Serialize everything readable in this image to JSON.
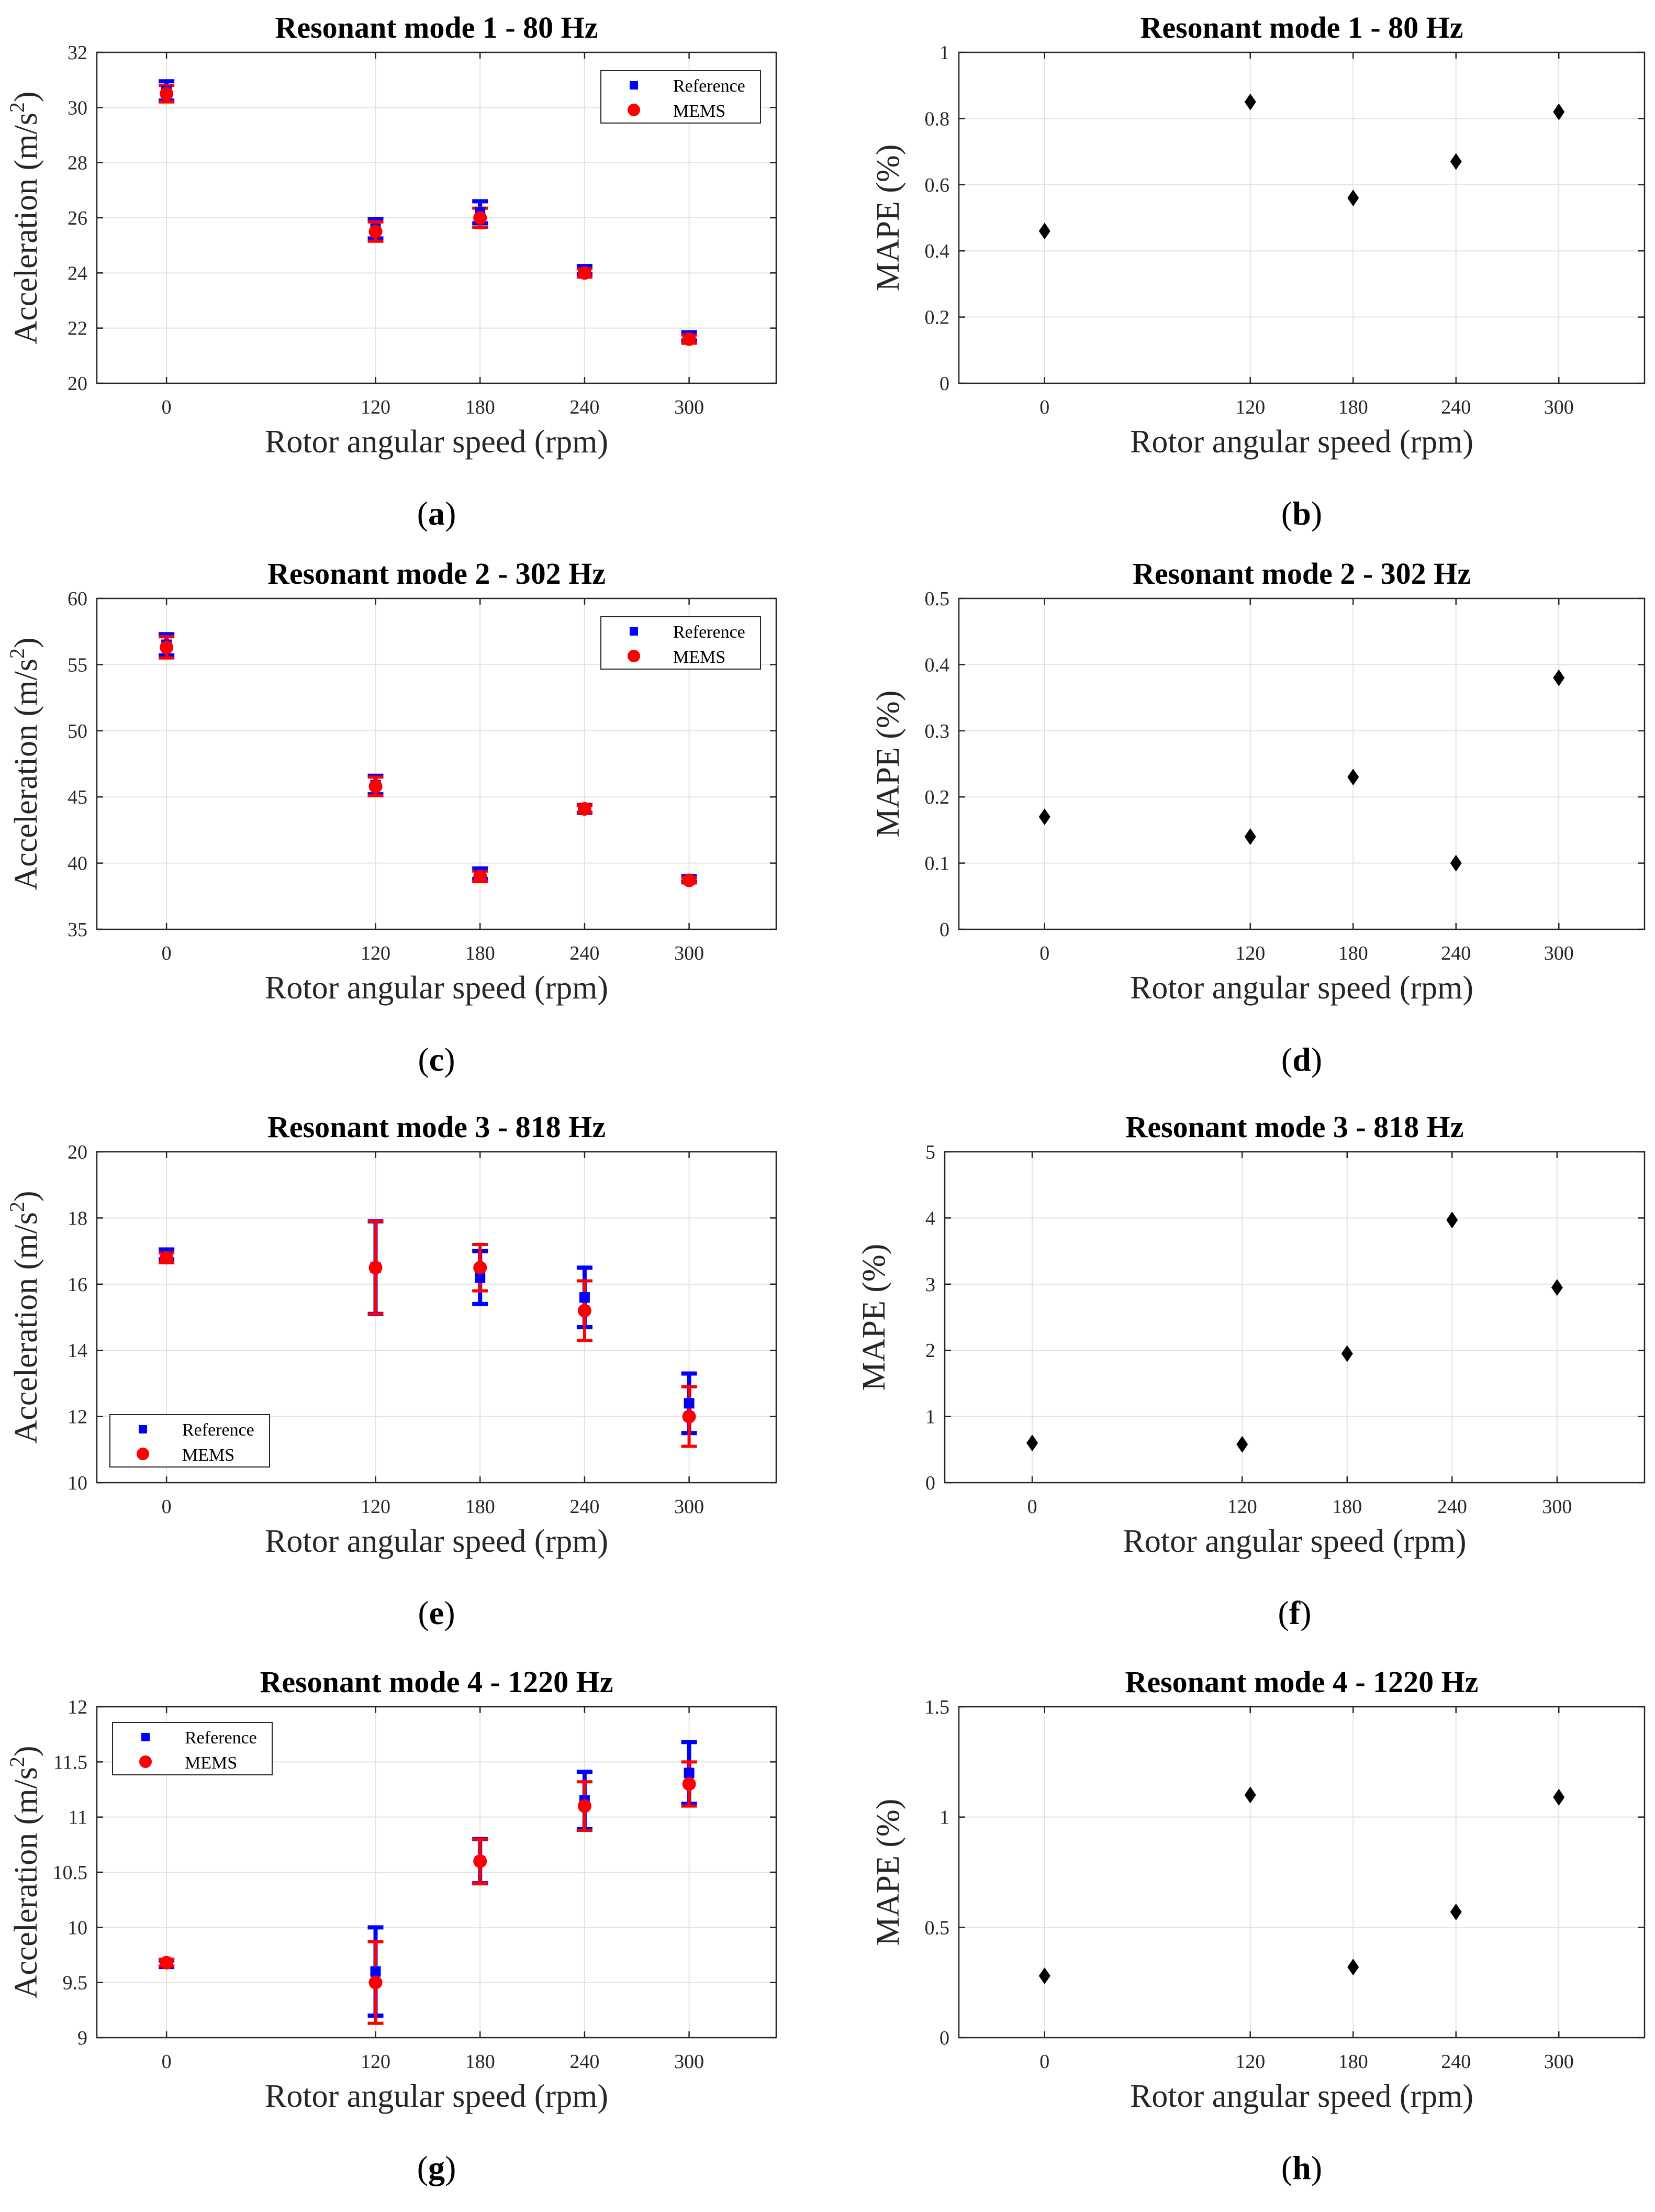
{
  "figure": {
    "x_axis_label": "Rotor angular speed (rpm)",
    "acc_axis_label_main": "Acceleration (m/s",
    "acc_axis_label_sup": "2",
    "acc_axis_label_end": ")",
    "mape_axis_label": "MAPE (%)",
    "legend_reference": "Reference",
    "legend_mems": "MEMS"
  },
  "colors": {
    "reference": "#0000ff",
    "mems": "#ff0000",
    "mape": "#000000",
    "grid": "#e3e3e3",
    "axis": "#262626"
  },
  "chart_data": [
    {
      "id": "a",
      "sublabel": "a",
      "type": "scatter",
      "title": "Resonant mode 1 - 80 Hz",
      "xlabel": "Rotor angular speed (rpm)",
      "ylabel": "Acceleration (m/s2)",
      "x": [
        0,
        120,
        180,
        240,
        300
      ],
      "xticks": [
        "0",
        "120",
        "180",
        "240",
        "300"
      ],
      "xlim": [
        -40,
        350
      ],
      "ylim": [
        20,
        32
      ],
      "yticks": [
        "20",
        "22",
        "24",
        "26",
        "28",
        "30",
        "32"
      ],
      "legend": "top-right",
      "series": [
        {
          "name": "Reference",
          "values": [
            30.6,
            25.6,
            26.2,
            24.1,
            21.7
          ],
          "err": [
            0.35,
            0.35,
            0.4,
            0.15,
            0.15
          ]
        },
        {
          "name": "MEMS",
          "values": [
            30.5,
            25.5,
            26.0,
            24.0,
            21.6
          ],
          "err": [
            0.3,
            0.35,
            0.35,
            0.15,
            0.15
          ]
        }
      ]
    },
    {
      "id": "b",
      "sublabel": "b",
      "type": "scatter",
      "title": "Resonant mode 1 - 80 Hz",
      "xlabel": "Rotor angular speed (rpm)",
      "ylabel": "MAPE (%)",
      "x": [
        0,
        120,
        180,
        240,
        300
      ],
      "xticks": [
        "0",
        "120",
        "180",
        "240",
        "300"
      ],
      "xlim": [
        -50,
        350
      ],
      "ylim": [
        0,
        1
      ],
      "yticks": [
        "0",
        "0.2",
        "0.4",
        "0.6",
        "0.8",
        "1"
      ],
      "series": [
        {
          "name": "MAPE",
          "values": [
            0.46,
            0.85,
            0.56,
            0.67,
            0.82
          ]
        }
      ]
    },
    {
      "id": "c",
      "sublabel": "c",
      "type": "scatter",
      "title": "Resonant mode 2 - 302 Hz",
      "xlabel": "Rotor angular speed (rpm)",
      "ylabel": "Acceleration (m/s2)",
      "x": [
        0,
        120,
        180,
        240,
        300
      ],
      "xticks": [
        "0",
        "120",
        "180",
        "240",
        "300"
      ],
      "xlim": [
        -40,
        350
      ],
      "ylim": [
        35,
        60
      ],
      "yticks": [
        "35",
        "40",
        "45",
        "50",
        "55",
        "60"
      ],
      "legend": "top-right",
      "series": [
        {
          "name": "Reference",
          "values": [
            56.5,
            45.9,
            39.2,
            44.1,
            38.8
          ],
          "err": [
            0.8,
            0.7,
            0.4,
            0.3,
            0.2
          ]
        },
        {
          "name": "MEMS",
          "values": [
            56.3,
            45.8,
            39.0,
            44.1,
            38.7
          ],
          "err": [
            0.8,
            0.7,
            0.4,
            0.3,
            0.2
          ]
        }
      ]
    },
    {
      "id": "d",
      "sublabel": "d",
      "type": "scatter",
      "title": "Resonant mode 2 - 302 Hz",
      "xlabel": "Rotor angular speed (rpm)",
      "ylabel": "MAPE (%)",
      "x": [
        0,
        120,
        180,
        240,
        300
      ],
      "xticks": [
        "0",
        "120",
        "180",
        "240",
        "300"
      ],
      "xlim": [
        -50,
        350
      ],
      "ylim": [
        0,
        0.5
      ],
      "yticks": [
        "0",
        "0.1",
        "0.2",
        "0.3",
        "0.4",
        "0.5"
      ],
      "series": [
        {
          "name": "MAPE",
          "values": [
            0.17,
            0.14,
            0.23,
            0.1,
            0.38
          ]
        }
      ]
    },
    {
      "id": "e",
      "sublabel": "e",
      "type": "scatter",
      "title": "Resonant mode 3 - 818 Hz",
      "xlabel": "Rotor angular speed (rpm)",
      "ylabel": "Acceleration (m/s2)",
      "x": [
        0,
        120,
        180,
        240,
        300
      ],
      "xticks": [
        "0",
        "120",
        "180",
        "240",
        "300"
      ],
      "xlim": [
        -40,
        350
      ],
      "ylim": [
        10,
        20
      ],
      "yticks": [
        "10",
        "12",
        "14",
        "16",
        "18",
        "20"
      ],
      "legend": "bottom-left",
      "series": [
        {
          "name": "Reference",
          "values": [
            16.9,
            16.5,
            16.2,
            15.6,
            12.4
          ],
          "err": [
            0.15,
            1.4,
            0.8,
            0.9,
            0.9
          ]
        },
        {
          "name": "MEMS",
          "values": [
            16.8,
            16.5,
            16.5,
            15.2,
            12.0
          ],
          "err": [
            0.15,
            1.4,
            0.7,
            0.9,
            0.9
          ]
        }
      ]
    },
    {
      "id": "f",
      "sublabel": "f",
      "type": "scatter",
      "title": "Resonant mode 3 - 818 Hz",
      "xlabel": "Rotor angular speed (rpm)",
      "ylabel": "MAPE (%)",
      "x": [
        0,
        120,
        180,
        240,
        300
      ],
      "xticks": [
        "0",
        "120",
        "180",
        "240",
        "300"
      ],
      "xlim": [
        -50,
        350
      ],
      "ylim": [
        0,
        5
      ],
      "yticks": [
        "0",
        "1",
        "2",
        "3",
        "4",
        "5"
      ],
      "series": [
        {
          "name": "MAPE",
          "values": [
            0.6,
            0.58,
            1.95,
            3.97,
            2.95
          ]
        }
      ]
    },
    {
      "id": "g",
      "sublabel": "g",
      "type": "scatter",
      "title": "Resonant mode 4 - 1220 Hz",
      "xlabel": "Rotor angular speed (rpm)",
      "ylabel": "Acceleration (m/s2)",
      "x": [
        0,
        120,
        180,
        240,
        300
      ],
      "xticks": [
        "0",
        "120",
        "180",
        "240",
        "300"
      ],
      "xlim": [
        -40,
        350
      ],
      "ylim": [
        9,
        12
      ],
      "yticks": [
        "9",
        "9.5",
        "10",
        "10.5",
        "11",
        "11.5",
        "12"
      ],
      "legend": "top-left",
      "series": [
        {
          "name": "Reference",
          "values": [
            9.67,
            9.6,
            10.6,
            11.15,
            11.4
          ],
          "err": [
            0.03,
            0.4,
            0.2,
            0.26,
            0.28
          ]
        },
        {
          "name": "MEMS",
          "values": [
            9.68,
            9.5,
            10.6,
            11.1,
            11.3
          ],
          "err": [
            0.03,
            0.37,
            0.2,
            0.22,
            0.2
          ]
        }
      ]
    },
    {
      "id": "h",
      "sublabel": "h",
      "type": "scatter",
      "title": "Resonant mode 4 - 1220 Hz",
      "xlabel": "Rotor angular speed (rpm)",
      "ylabel": "MAPE (%)",
      "x": [
        0,
        120,
        180,
        240,
        300
      ],
      "xticks": [
        "0",
        "120",
        "180",
        "240",
        "300"
      ],
      "xlim": [
        -50,
        350
      ],
      "ylim": [
        0,
        1.5
      ],
      "yticks": [
        "0",
        "0.5",
        "1",
        "1.5"
      ],
      "series": [
        {
          "name": "MAPE",
          "values": [
            0.28,
            1.1,
            0.32,
            0.57,
            1.09
          ]
        }
      ]
    }
  ]
}
